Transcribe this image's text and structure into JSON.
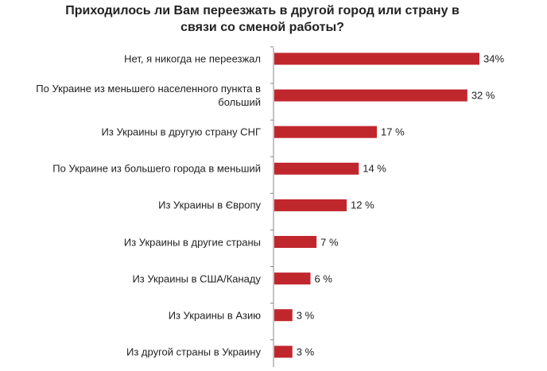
{
  "chart_data": {
    "type": "bar",
    "orientation": "horizontal",
    "title": "Приходилось ли Вам переезжать в другой город или страну в связи со сменой работы?",
    "categories": [
      "Нет, я никогда не переезжал",
      "По Украине из меньшего населенного пункта в больший",
      "Из Украины в другую страну СНГ",
      "По Украине из большего города в меньший",
      "Из Украины в Європу",
      "Из Украины в другие страны",
      "Из Украины  в США/Канаду",
      "Из Украины в  Азию",
      "Из другой страны в Украину"
    ],
    "values": [
      34,
      32,
      17,
      14,
      12,
      7,
      6,
      3,
      3
    ],
    "value_labels": [
      "34%",
      "32 %",
      "17 %",
      "14 %",
      "12 %",
      "7 %",
      "6 %",
      "3 %",
      "3 %"
    ],
    "unit": "%",
    "xlim": [
      0,
      34
    ],
    "bar_color": "#c0272d",
    "grid": false,
    "legend": "none"
  }
}
